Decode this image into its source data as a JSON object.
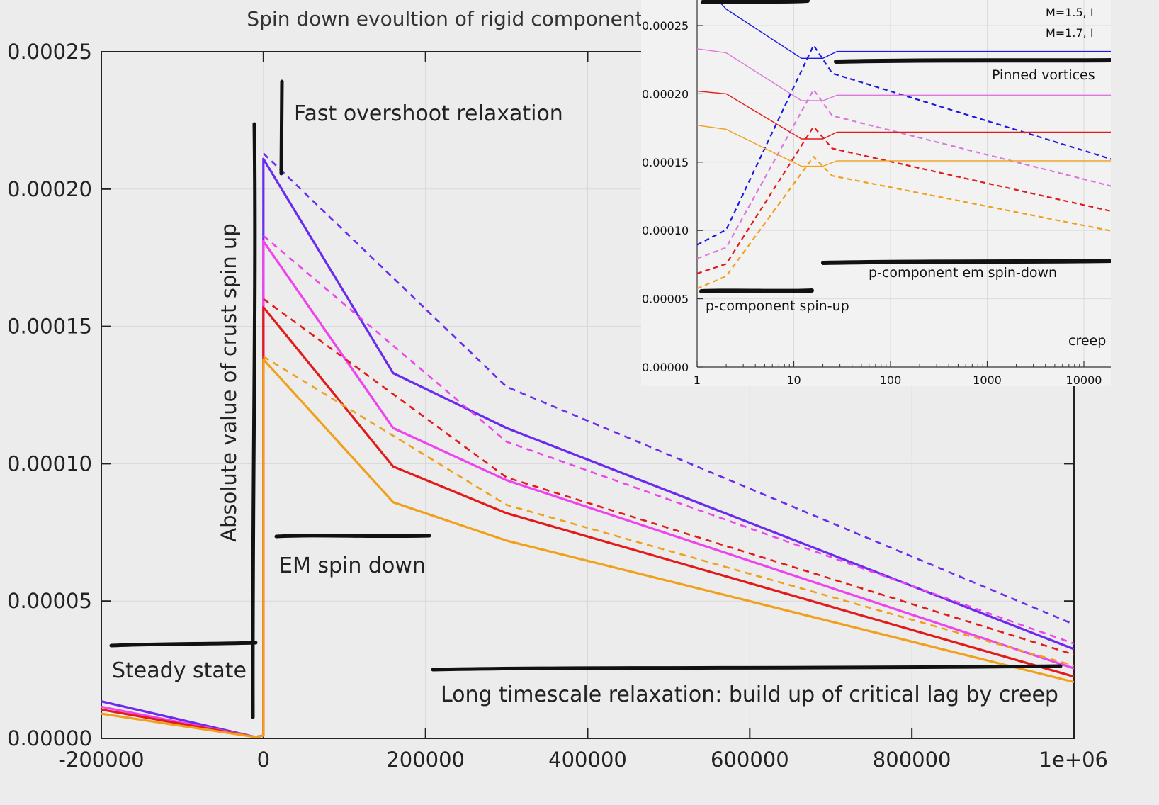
{
  "chart_data": [
    {
      "type": "line",
      "title": "Spin down evoultion of rigid component",
      "xlabel": "",
      "ylabel": "Absolute value of crust spin up",
      "xlim": [
        -200000,
        1000000
      ],
      "ylim": [
        0,
        0.00025
      ],
      "xticks": [
        "-200000",
        "0",
        "200000",
        "400000",
        "600000",
        "800000",
        "1e+06"
      ],
      "yticks": [
        "0.00000",
        "0.00005",
        "0.00010",
        "0.00015",
        "0.00020",
        "0.00025"
      ],
      "grid": true,
      "legend": "none",
      "annotations": [
        "Fast overshoot relaxation",
        "EM spin down",
        "Steady state",
        "Long timescale relaxation: build up of critical lag by creep"
      ],
      "series": [
        {
          "color": "#6a2aef",
          "style": "solid",
          "x": [
            -200000,
            -10000,
            0,
            0,
            160000,
            300000,
            1000000
          ],
          "y": [
            1.35e-05,
            5e-07,
            1e-06,
            0.000211,
            0.000133,
            0.000113,
            3.25e-05
          ]
        },
        {
          "color": "#6a2aef",
          "style": "dashed",
          "x": [
            0,
            300000,
            1000000
          ],
          "y": [
            0.000213,
            0.000128,
            4.15e-05
          ]
        },
        {
          "color": "#ee44ee",
          "style": "solid",
          "x": [
            -200000,
            -10000,
            0,
            0,
            160000,
            300000,
            1000000
          ],
          "y": [
            1.15e-05,
            5e-07,
            1e-06,
            0.000181,
            0.000113,
            9.4e-05,
            2.55e-05
          ]
        },
        {
          "color": "#ee44ee",
          "style": "dashed",
          "x": [
            0,
            300000,
            1000000
          ],
          "y": [
            0.000183,
            0.000108,
            3.45e-05
          ]
        },
        {
          "color": "#e31a1a",
          "style": "solid",
          "x": [
            -200000,
            -10000,
            0,
            0,
            160000,
            300000,
            1000000
          ],
          "y": [
            1.05e-05,
            5e-07,
            1e-06,
            0.000157,
            9.9e-05,
            8.2e-05,
            2.25e-05
          ]
        },
        {
          "color": "#e31a1a",
          "style": "dashed",
          "x": [
            0,
            300000,
            1000000
          ],
          "y": [
            0.00016,
            9.5e-05,
            3.05e-05
          ]
        },
        {
          "color": "#f0a01a",
          "style": "solid",
          "x": [
            -200000,
            -10000,
            0,
            0,
            160000,
            300000,
            1000000
          ],
          "y": [
            9e-06,
            5e-07,
            1e-06,
            0.000138,
            8.6e-05,
            7.2e-05,
            2.05e-05
          ]
        },
        {
          "color": "#f0a01a",
          "style": "dashed",
          "x": [
            0,
            300000,
            1000000
          ],
          "y": [
            0.000139,
            8.5e-05,
            2.65e-05
          ]
        }
      ]
    },
    {
      "type": "line",
      "xscale": "log",
      "xlim": [
        1,
        30000
      ],
      "ylim": [
        0,
        0.00027
      ],
      "xticks": [
        "1",
        "10",
        "100",
        "1000",
        "10000"
      ],
      "yticks": [
        "0.00000",
        "0.00005",
        "0.00010",
        "0.00015",
        "0.00020",
        "0.00025"
      ],
      "grid": true,
      "legend": "top-right",
      "legend_entries": [
        "M=1.5, I",
        "M=1.7, I"
      ],
      "annotations": [
        "Pinned vortices",
        "p-component em spin-down",
        "p-component spin-up",
        "creep"
      ],
      "series": [
        {
          "color": "#1a1ae0",
          "style": "solid",
          "x": [
            1,
            2,
            12,
            20,
            28,
            30000
          ],
          "y": [
            0.000285,
            0.000262,
            0.000226,
            0.000226,
            0.000231,
            0.000231
          ]
        },
        {
          "color": "#1a1ae0",
          "style": "dashed",
          "x": [
            1,
            2,
            16,
            25,
            30000
          ],
          "y": [
            8.95e-05,
            0.0001005,
            0.0002355,
            0.000215,
            0.000148
          ]
        },
        {
          "color": "#dd77dd",
          "style": "solid",
          "x": [
            1,
            2,
            12,
            20,
            28,
            30000
          ],
          "y": [
            0.000233,
            0.00023,
            0.000195,
            0.000195,
            0.000199,
            0.000199
          ]
        },
        {
          "color": "#dd77dd",
          "style": "dashed",
          "x": [
            1,
            2,
            16,
            25,
            30000
          ],
          "y": [
            7.95e-05,
            8.75e-05,
            0.000203,
            0.000184,
            0.000129
          ]
        },
        {
          "color": "#e31a1a",
          "style": "solid",
          "x": [
            1,
            2,
            12,
            20,
            28,
            30000
          ],
          "y": [
            0.000202,
            0.0002,
            0.000167,
            0.000167,
            0.000172,
            0.000172
          ]
        },
        {
          "color": "#e31a1a",
          "style": "dashed",
          "x": [
            1,
            2,
            16,
            25,
            30000
          ],
          "y": [
            6.85e-05,
            7.55e-05,
            0.000176,
            0.00016,
            0.000111
          ]
        },
        {
          "color": "#f0a01a",
          "style": "solid",
          "x": [
            1,
            2,
            12,
            20,
            28,
            30000
          ],
          "y": [
            0.000177,
            0.000174,
            0.000147,
            0.000147,
            0.000151,
            0.000151
          ]
        },
        {
          "color": "#f0a01a",
          "style": "dashed",
          "x": [
            1,
            2,
            16,
            25,
            30000
          ],
          "y": [
            5.75e-05,
            6.65e-05,
            0.000154,
            0.00014,
            9.7e-05
          ]
        }
      ]
    }
  ]
}
